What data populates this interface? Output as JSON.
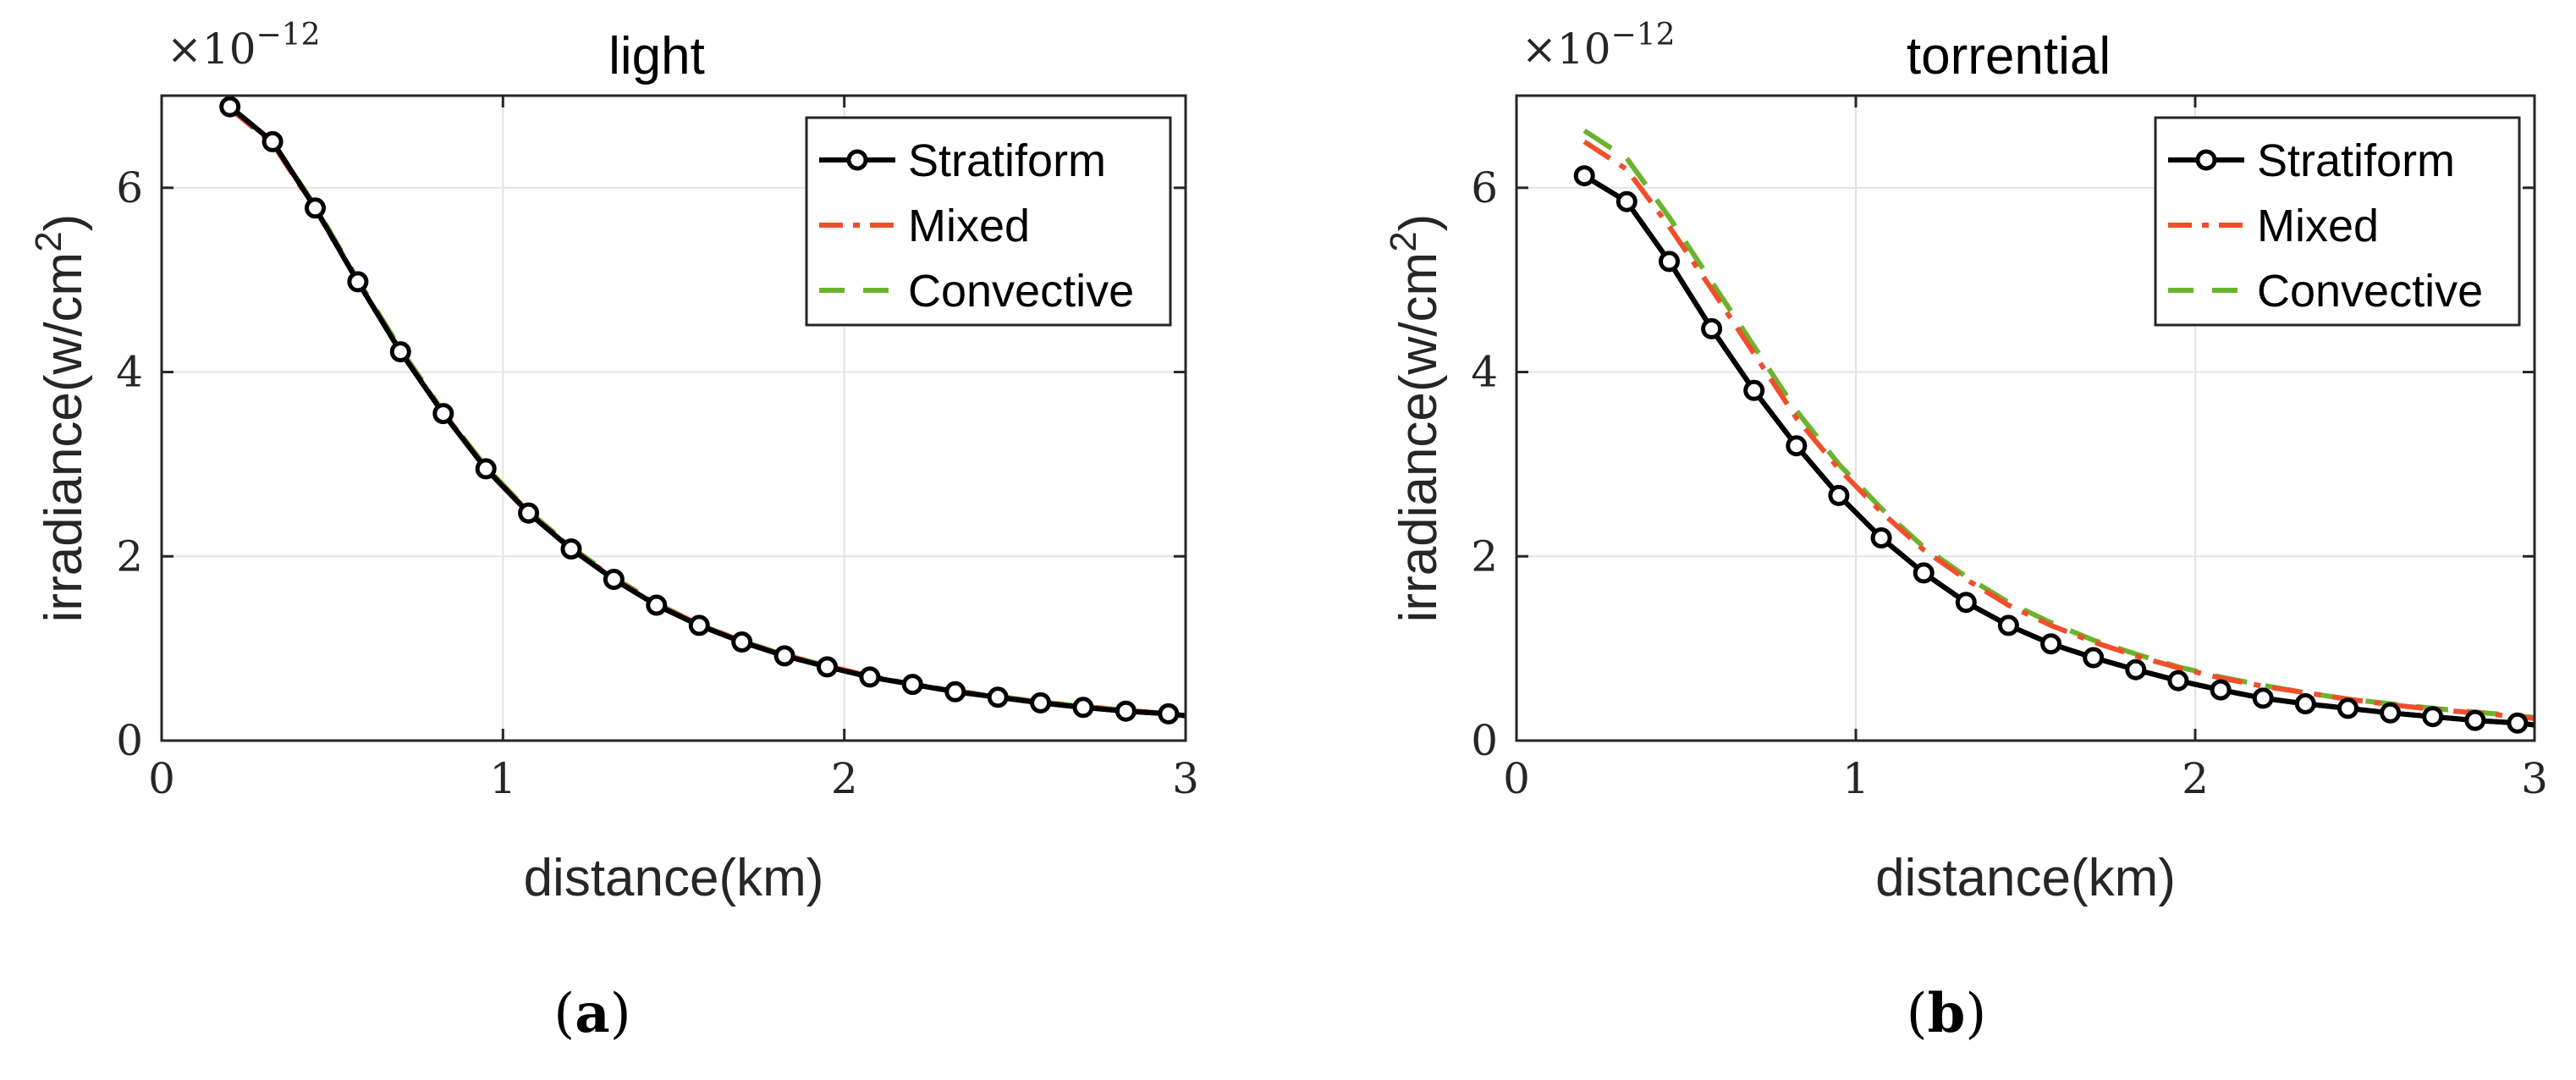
{
  "chart_data": [
    {
      "type": "line",
      "title": "light",
      "xlabel": "distance(km)",
      "ylabel": "irradiance(w/cm",
      "ylabel_sup": "2",
      "ylabel_end": ")",
      "multiplier_base": "×10",
      "multiplier_exp": "−12",
      "xlim": [
        0,
        3
      ],
      "ylim": [
        0,
        7
      ],
      "xticks": [
        0,
        1,
        2,
        3
      ],
      "yticks": [
        0,
        2,
        4,
        6
      ],
      "xtick_labels": [
        "0",
        "1",
        "2",
        "3"
      ],
      "ytick_labels": [
        "0",
        "2",
        "4",
        "6"
      ],
      "grid": true,
      "legend_position": "top-right",
      "panel_label": "a",
      "x": [
        0.2,
        0.325,
        0.45,
        0.575,
        0.7,
        0.825,
        0.95,
        1.075,
        1.2,
        1.325,
        1.45,
        1.575,
        1.7,
        1.825,
        1.95,
        2.075,
        2.2,
        2.325,
        2.45,
        2.575,
        2.7,
        2.825,
        2.95
      ],
      "series": [
        {
          "name": "Stratiform",
          "style": "solid-marker",
          "color": "#000000",
          "values": [
            6.88,
            6.5,
            5.78,
            4.98,
            4.22,
            3.55,
            2.95,
            2.47,
            2.08,
            1.75,
            1.47,
            1.25,
            1.07,
            0.92,
            0.8,
            0.69,
            0.61,
            0.53,
            0.47,
            0.41,
            0.36,
            0.32,
            0.29
          ]
        },
        {
          "name": "Mixed",
          "style": "dashdot",
          "color": "#f04e2c",
          "values": [
            6.86,
            6.48,
            5.77,
            4.98,
            4.23,
            3.56,
            2.96,
            2.48,
            2.09,
            1.76,
            1.48,
            1.26,
            1.08,
            0.93,
            0.81,
            0.7,
            0.61,
            0.54,
            0.47,
            0.42,
            0.37,
            0.33,
            0.29
          ]
        },
        {
          "name": "Convective",
          "style": "dashed",
          "color": "#6ab42d",
          "values": [
            6.88,
            6.5,
            5.8,
            5.0,
            4.25,
            3.57,
            2.97,
            2.49,
            2.1,
            1.77,
            1.49,
            1.26,
            1.08,
            0.93,
            0.81,
            0.7,
            0.61,
            0.54,
            0.48,
            0.42,
            0.37,
            0.33,
            0.29
          ]
        }
      ]
    },
    {
      "type": "line",
      "title": "torrential",
      "xlabel": "distance(km)",
      "ylabel": "irradiance(w/cm",
      "ylabel_sup": "2",
      "ylabel_end": ")",
      "multiplier_base": "×10",
      "multiplier_exp": "−12",
      "xlim": [
        0,
        3
      ],
      "ylim": [
        0,
        7
      ],
      "xticks": [
        0,
        1,
        2,
        3
      ],
      "yticks": [
        0,
        2,
        4,
        6
      ],
      "xtick_labels": [
        "0",
        "1",
        "2",
        "3"
      ],
      "ytick_labels": [
        "0",
        "2",
        "4",
        "6"
      ],
      "grid": true,
      "legend_position": "top-right",
      "panel_label": "b",
      "x": [
        0.2,
        0.325,
        0.45,
        0.575,
        0.7,
        0.825,
        0.95,
        1.075,
        1.2,
        1.325,
        1.45,
        1.575,
        1.7,
        1.825,
        1.95,
        2.075,
        2.2,
        2.325,
        2.45,
        2.575,
        2.7,
        2.825,
        2.95
      ],
      "series": [
        {
          "name": "Stratiform",
          "style": "solid-marker",
          "color": "#000000",
          "values": [
            6.13,
            5.85,
            5.2,
            4.47,
            3.8,
            3.2,
            2.66,
            2.2,
            1.82,
            1.5,
            1.25,
            1.05,
            0.9,
            0.77,
            0.65,
            0.55,
            0.46,
            0.4,
            0.35,
            0.3,
            0.26,
            0.22,
            0.19
          ]
        },
        {
          "name": "Mixed",
          "style": "dashdot",
          "color": "#f04e2c",
          "values": [
            6.5,
            6.2,
            5.58,
            4.9,
            4.2,
            3.5,
            2.95,
            2.48,
            2.07,
            1.75,
            1.47,
            1.25,
            1.07,
            0.92,
            0.79,
            0.68,
            0.59,
            0.52,
            0.45,
            0.39,
            0.34,
            0.3,
            0.26
          ]
        },
        {
          "name": "Convective",
          "style": "dashed",
          "color": "#6ab42d",
          "values": [
            6.62,
            6.32,
            5.68,
            4.98,
            4.28,
            3.58,
            3.0,
            2.52,
            2.1,
            1.78,
            1.5,
            1.28,
            1.09,
            0.94,
            0.8,
            0.69,
            0.6,
            0.52,
            0.45,
            0.4,
            0.35,
            0.31,
            0.27
          ]
        }
      ]
    }
  ]
}
